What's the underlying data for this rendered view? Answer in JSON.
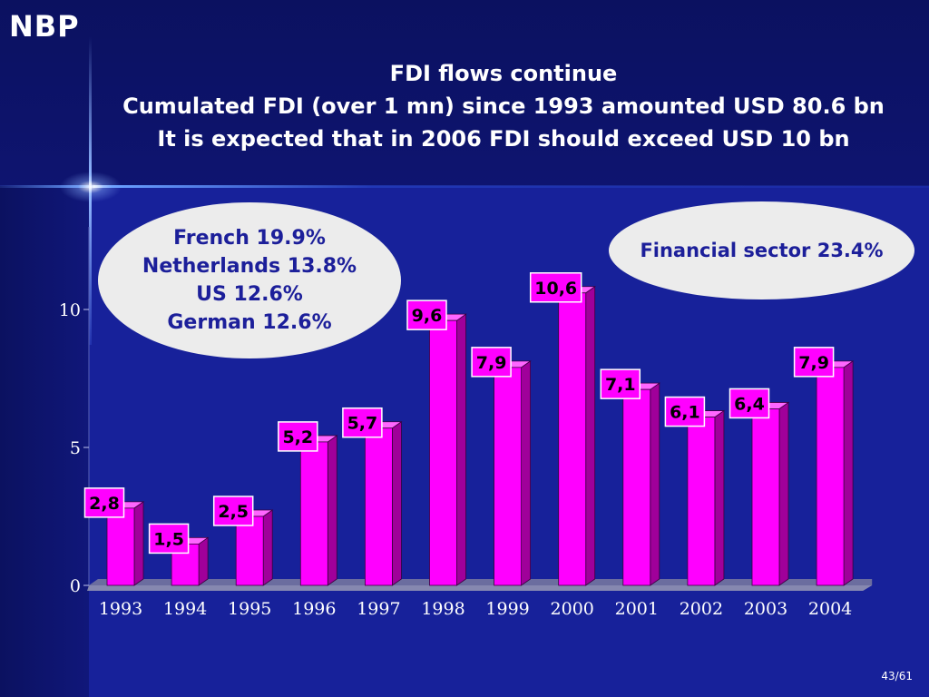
{
  "header": {
    "logo": "NBP",
    "title_lines": [
      "FDI flows continue",
      "Cumulated FDI (over 1 mn) since 1993 amounted USD 80.6 bn",
      "It is expected that in 2006 FDI should exceed USD 10 bn"
    ]
  },
  "callouts": {
    "left": [
      "French 19.9%",
      "Netherlands 13.8%",
      "US 12.6%",
      "German 12.6%"
    ],
    "right": "Financial sector 23.4%"
  },
  "footer": {
    "page": "43/61"
  },
  "colors": {
    "bar_front": "#ff00ff",
    "bar_side": "#a0009a",
    "bar_top": "#ff66ff",
    "label_box": "#ff00ff",
    "text": "#ffffff",
    "accent_text": "#1c1f9a"
  },
  "chart_data": {
    "type": "bar",
    "categories": [
      "1993",
      "1994",
      "1995",
      "1996",
      "1997",
      "1998",
      "1999",
      "2000",
      "2001",
      "2002",
      "2003",
      "2004"
    ],
    "values": [
      2.8,
      1.5,
      2.5,
      5.2,
      5.7,
      9.6,
      7.9,
      10.6,
      7.1,
      6.1,
      6.4,
      7.9
    ],
    "data_labels": [
      "2,8",
      "1,5",
      "2,5",
      "5,2",
      "5,7",
      "9,6",
      "7,9",
      "10,6",
      "7,1",
      "6,1",
      "6,4",
      "7,9"
    ],
    "ylim": [
      0,
      13
    ],
    "yticks": [
      0,
      5,
      10
    ],
    "grid": false,
    "style": "3d"
  }
}
